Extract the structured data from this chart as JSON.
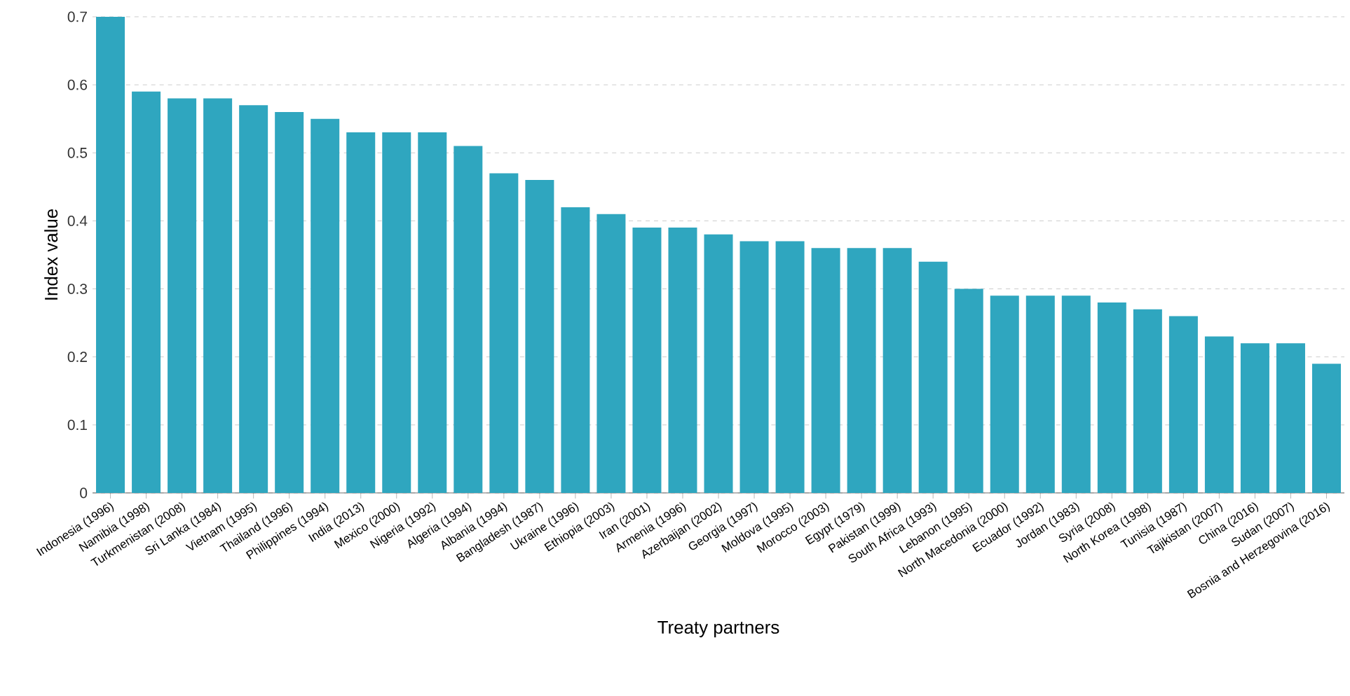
{
  "chart_data": {
    "type": "bar",
    "xlabel": "Treaty partners",
    "ylabel": "Index value",
    "categories": [
      "Indonesia (1996)",
      "Namibia (1998)",
      "Turkmenistan (2008)",
      "Sri Lanka (1984)",
      "Vietnam (1995)",
      "Thailand (1996)",
      "Philippines (1994)",
      "India (2013)",
      "Mexico (2000)",
      "Nigeria (1992)",
      "Algeria (1994)",
      "Albania (1994)",
      "Bangladesh (1987)",
      "Ukraine (1996)",
      "Ethiopia (2003)",
      "Iran (2001)",
      "Armenia (1996)",
      "Azerbaijan (2002)",
      "Georgia (1997)",
      "Moldova (1995)",
      "Morocco (2003)",
      "Egypt (1979)",
      "Pakistan (1999)",
      "South Africa (1993)",
      "Lebanon (1995)",
      "North Macedonia (2000)",
      "Ecuador (1992)",
      "Jordan (1983)",
      "Syria (2008)",
      "North Korea (1998)",
      "Tunisia (1987)",
      "Tajikistan (2007)",
      "China (2016)",
      "Sudan (2007)",
      "Bosnia and Herzegovina (2016)"
    ],
    "values": [
      0.7,
      0.59,
      0.58,
      0.58,
      0.57,
      0.56,
      0.55,
      0.53,
      0.53,
      0.53,
      0.51,
      0.47,
      0.46,
      0.42,
      0.41,
      0.39,
      0.39,
      0.38,
      0.37,
      0.37,
      0.36,
      0.36,
      0.36,
      0.34,
      0.3,
      0.29,
      0.29,
      0.29,
      0.28,
      0.27,
      0.26,
      0.23,
      0.22,
      0.22,
      0.19
    ],
    "color": "#2fa6bf",
    "ylim": [
      0,
      0.7
    ],
    "yticks": [
      0,
      0.1,
      0.2,
      0.3,
      0.4,
      0.5,
      0.6,
      0.7
    ],
    "grid": "y"
  }
}
